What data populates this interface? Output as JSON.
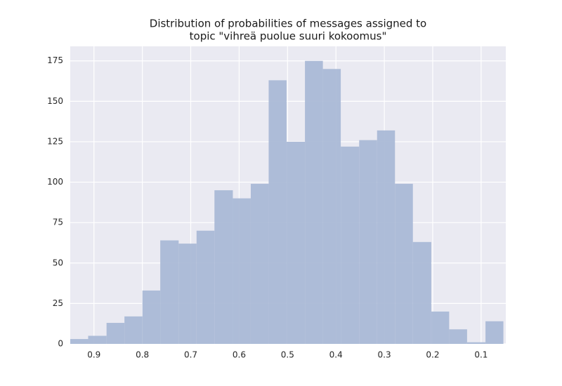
{
  "chart_data": {
    "type": "histogram",
    "title": [
      "Distribution of probabilities of messages assigned to",
      "topic \"vihreä puolue suuri kokoomus\""
    ],
    "bins": [
      0.054,
      0.091,
      0.129,
      0.166,
      0.203,
      0.241,
      0.278,
      0.315,
      0.352,
      0.39,
      0.427,
      0.464,
      0.502,
      0.539,
      0.576,
      0.613,
      0.651,
      0.688,
      0.725,
      0.763,
      0.8,
      0.837,
      0.874,
      0.912,
      0.949
    ],
    "values": [
      14,
      1,
      9,
      20,
      63,
      99,
      132,
      126,
      122,
      170,
      175,
      125,
      163,
      99,
      90,
      95,
      70,
      62,
      64,
      33,
      17,
      13,
      5,
      3
    ],
    "color": "#aab9d6",
    "xlim": [
      0.949,
      0.049
    ],
    "xticks": [
      0.9,
      0.8,
      0.7,
      0.6,
      0.5,
      0.4,
      0.3,
      0.2,
      0.1
    ],
    "ylim": [
      0,
      184
    ],
    "yticks": [
      0,
      25,
      50,
      75,
      100,
      125,
      150,
      175
    ],
    "grid": true
  }
}
